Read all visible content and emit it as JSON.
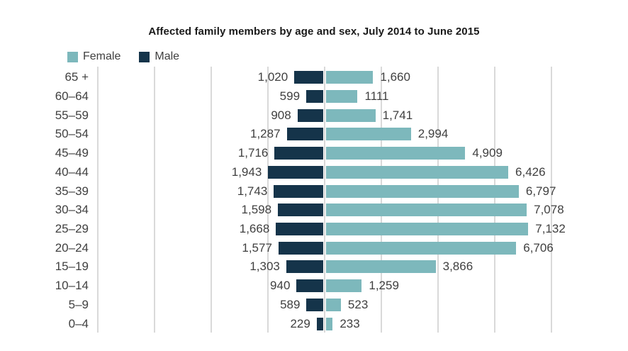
{
  "title": "Affected family members by age and sex, July 2014 to June 2015",
  "legend": {
    "items": [
      {
        "label": "Female",
        "color": "#7db8bc"
      },
      {
        "label": "Male",
        "color": "#15344a"
      }
    ]
  },
  "chart_data": {
    "type": "bar",
    "variant": "diverging-horizontal-population-pyramid",
    "title": "Affected family members by age and sex, July 2014 to June 2015",
    "categories": [
      "65 +",
      "60–64",
      "55–59",
      "50–54",
      "45–49",
      "40–44",
      "35–39",
      "30–34",
      "25–29",
      "20–24",
      "15–19",
      "10–14",
      "5–9",
      "0–4"
    ],
    "series": [
      {
        "name": "Male",
        "side": "left",
        "color": "#15344a",
        "values": [
          1020,
          599,
          908,
          1287,
          1716,
          1943,
          1743,
          1598,
          1668,
          1577,
          1303,
          940,
          589,
          229
        ],
        "value_labels": [
          "1,020",
          "599",
          "908",
          "1,287",
          "1,716",
          "1,943",
          "1,743",
          "1,598",
          "1,668",
          "1,577",
          "1,303",
          "940",
          "589",
          "229"
        ]
      },
      {
        "name": "Female",
        "side": "right",
        "color": "#7db8bc",
        "values": [
          1660,
          1111,
          1741,
          2994,
          4909,
          6426,
          6797,
          7078,
          7132,
          6706,
          3866,
          1259,
          523,
          233
        ],
        "value_labels": [
          "1,660",
          "1111",
          "1,741",
          "2,994",
          "4,909",
          "6,426",
          "6,797",
          "7,078",
          "7,132",
          "6,706",
          "3,866",
          "1,259",
          "523",
          "233"
        ]
      }
    ],
    "axis": {
      "range_each_side": 8000,
      "gridline_interval": 2000,
      "tick_labels_shown": false
    },
    "grid": true,
    "legend_position": "top-left",
    "value_labels_shown": true
  },
  "colors": {
    "background": "#ffffff",
    "gridline": "#d9d9d9",
    "label_text": "#404040",
    "title_text": "#1a1a1a"
  }
}
